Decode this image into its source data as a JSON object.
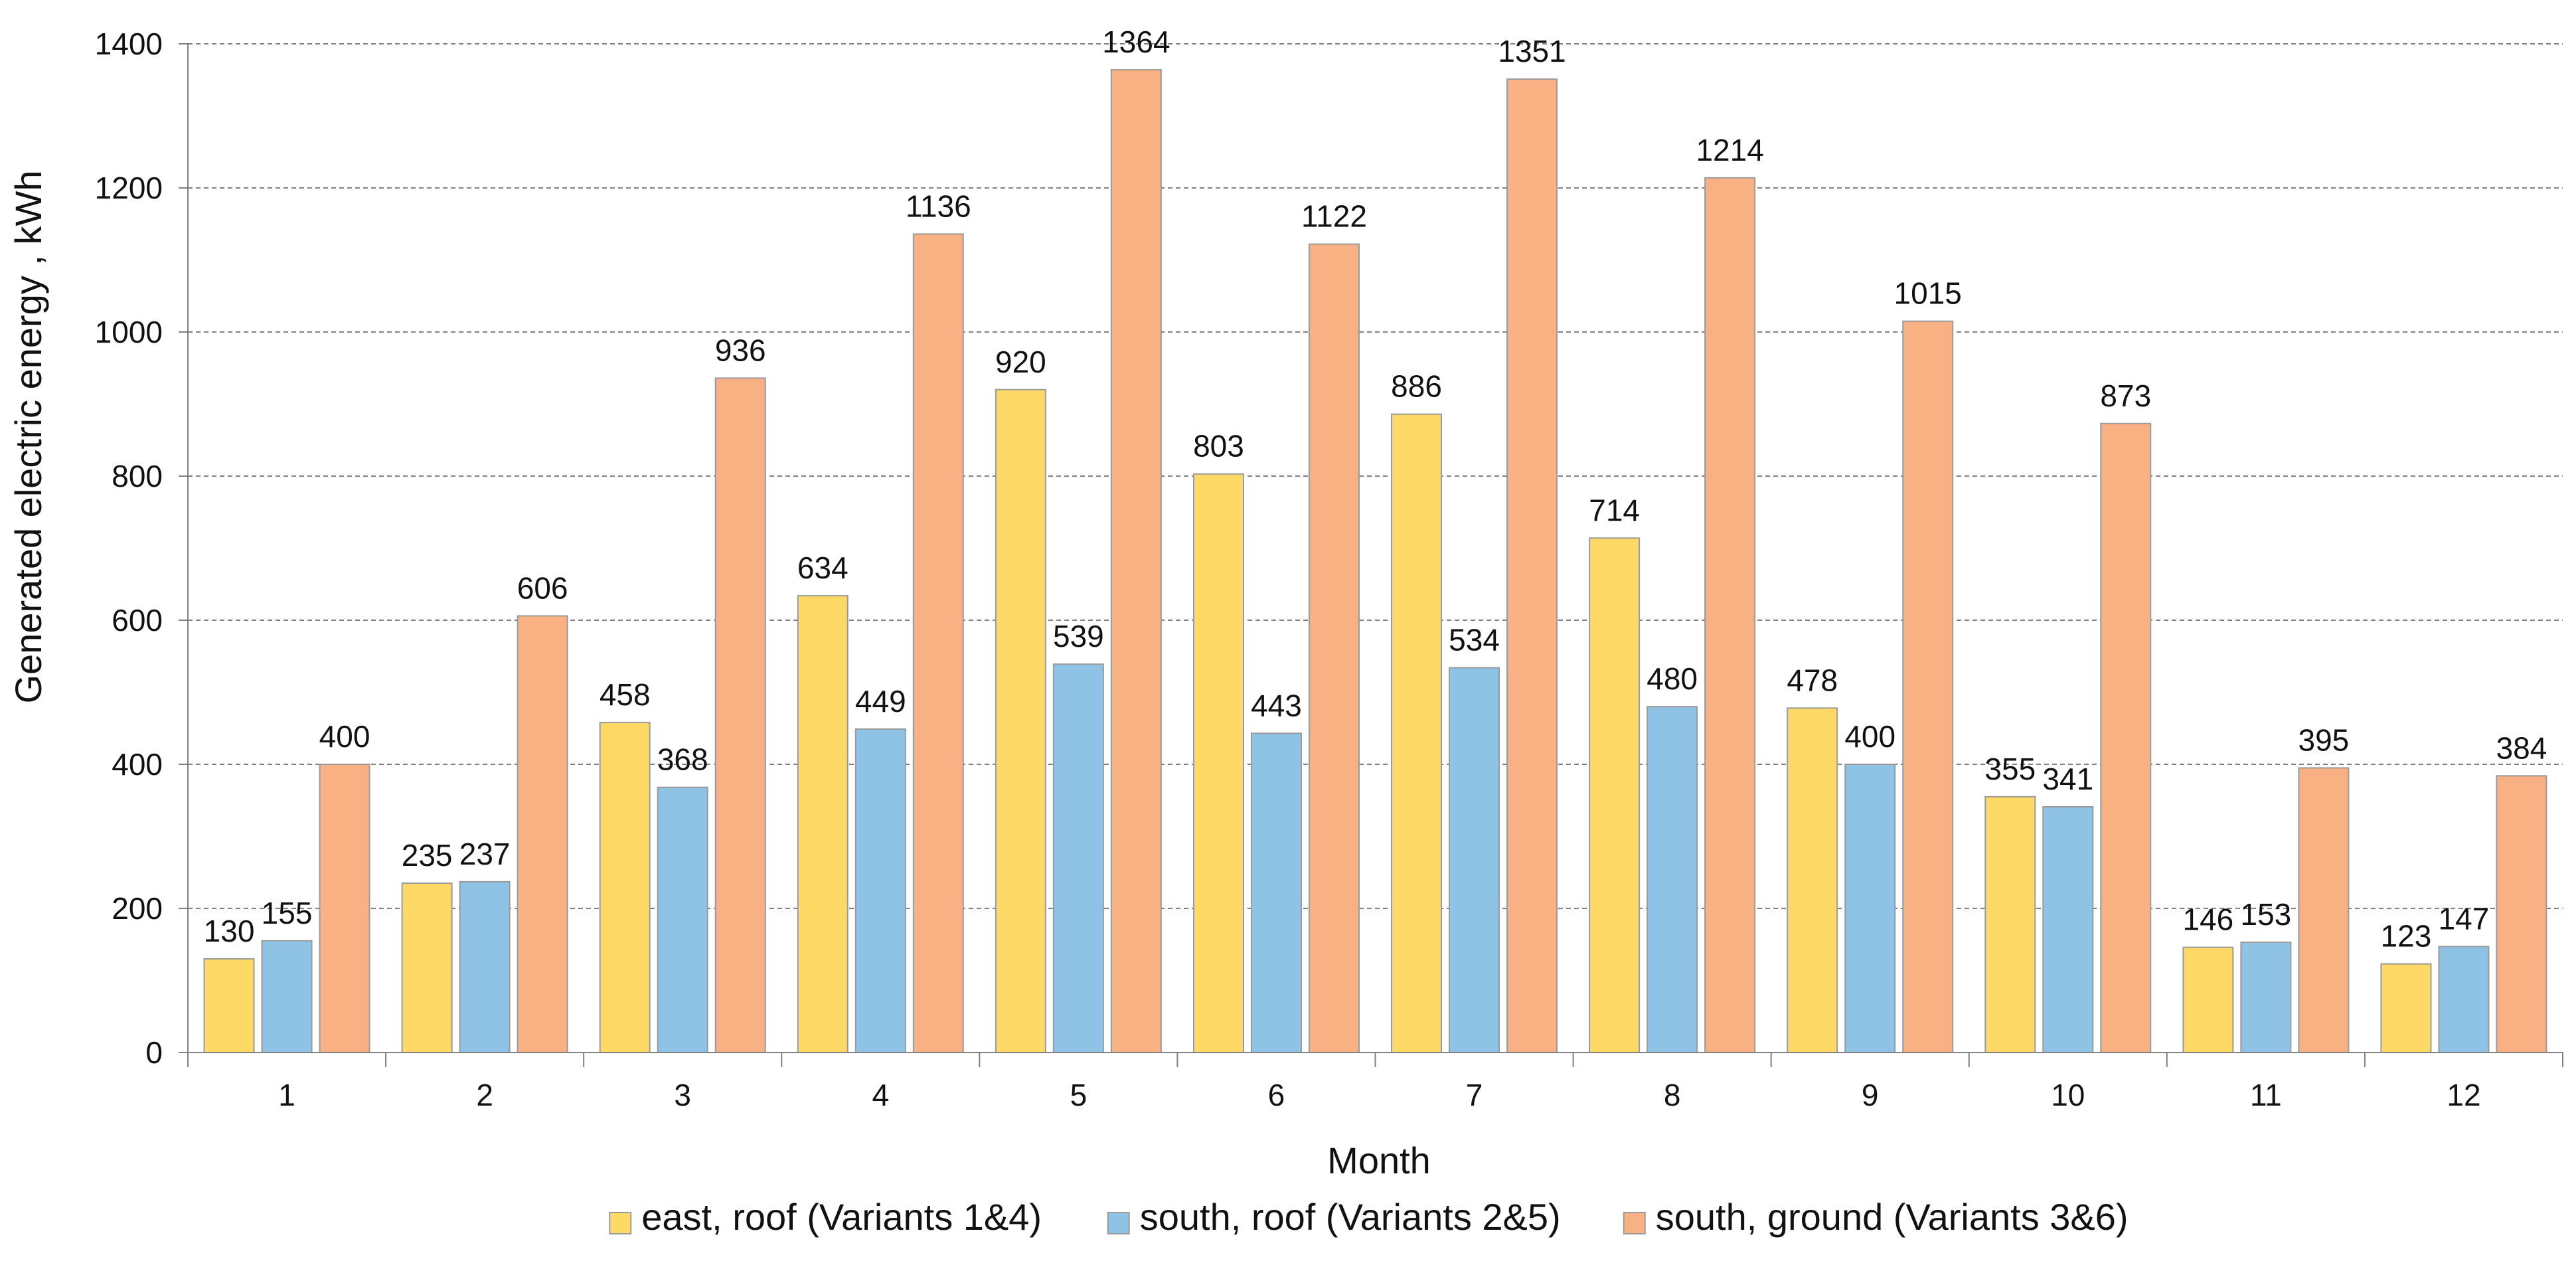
{
  "chart_data": {
    "type": "bar",
    "title": "",
    "xlabel": "Month",
    "ylabel": "Generated electric energy , kWh",
    "ylim": [
      0,
      1400
    ],
    "yticks": [
      0,
      200,
      400,
      600,
      800,
      1000,
      1200,
      1400
    ],
    "grid": "horizontal dashed",
    "legend_position": "bottom",
    "categories": [
      "1",
      "2",
      "3",
      "4",
      "5",
      "6",
      "7",
      "8",
      "9",
      "10",
      "11",
      "12"
    ],
    "series": [
      {
        "name": "east, roof (Variants 1&4)",
        "color": "#FFD966",
        "values": [
          130,
          235,
          458,
          634,
          920,
          803,
          886,
          714,
          478,
          355,
          146,
          123
        ]
      },
      {
        "name": "south, roof (Variants 2&5)",
        "color": "#8FC3E6",
        "values": [
          155,
          237,
          368,
          449,
          539,
          443,
          534,
          480,
          400,
          341,
          153,
          147
        ]
      },
      {
        "name": "south, ground (Variants 3&6)",
        "color": "#F9B183",
        "values": [
          400,
          606,
          936,
          1136,
          1364,
          1122,
          1351,
          1214,
          1015,
          873,
          395,
          384
        ]
      }
    ]
  }
}
